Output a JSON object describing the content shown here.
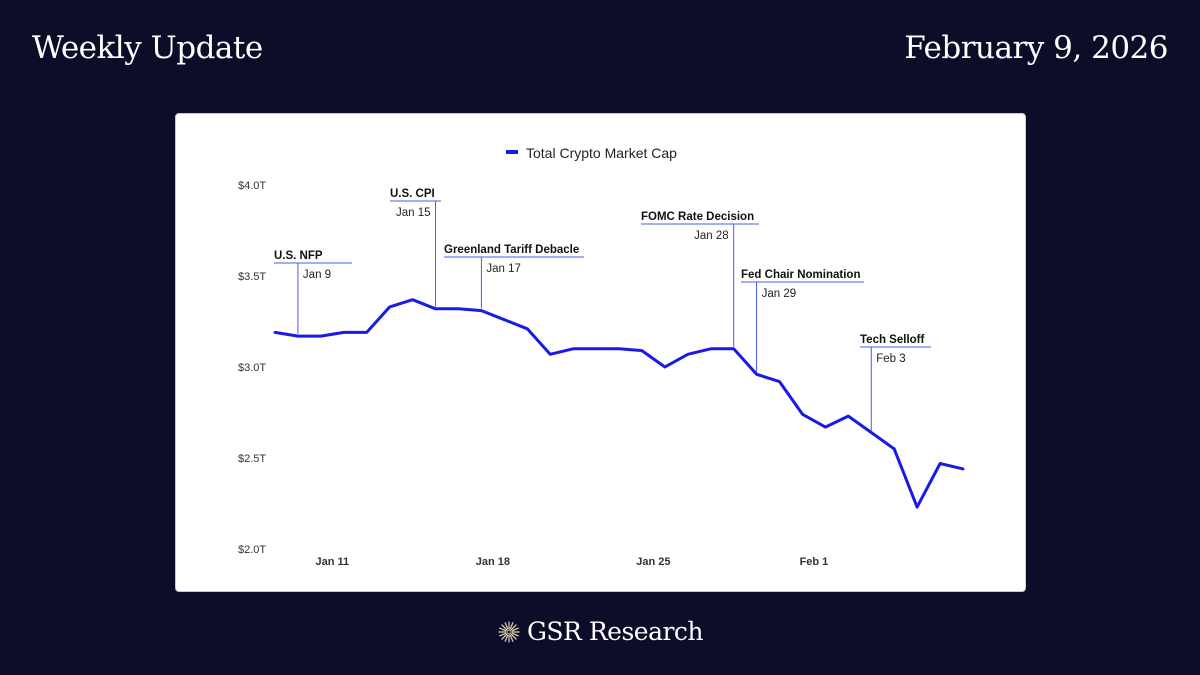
{
  "header": {
    "left_title": "Weekly Update",
    "right_title": "February 9, 2026"
  },
  "footer": {
    "brand": "GSR Research",
    "logo_icon": "starburst-logo-icon"
  },
  "chart_data": {
    "type": "line",
    "legend": "Total Crypto Market Cap",
    "legend_position": "top-center",
    "color": "#1a1ae8",
    "ylim": [
      2.0,
      4.0
    ],
    "y_ticks": [
      {
        "value": 2.0,
        "label": "$2.0T"
      },
      {
        "value": 2.5,
        "label": "$2.5T"
      },
      {
        "value": 3.0,
        "label": "$3.0T"
      },
      {
        "value": 3.5,
        "label": "$3.5T"
      },
      {
        "value": 4.0,
        "label": "$4.0T"
      }
    ],
    "x_ticks": [
      {
        "day": 11,
        "label": "Jan 11"
      },
      {
        "day": 18,
        "label": "Jan 18"
      },
      {
        "day": 25,
        "label": "Jan 25"
      },
      {
        "day": 32,
        "label": "Feb 1"
      }
    ],
    "x_range": [
      8.5,
      38.5
    ],
    "series": [
      {
        "name": "Total Crypto Market Cap",
        "x": [
          8.5,
          9.5,
          10.5,
          11.5,
          12.5,
          13.5,
          14.5,
          15.5,
          16.5,
          17.5,
          18.5,
          19.5,
          20.5,
          21.5,
          22.5,
          23.5,
          24.5,
          25.5,
          26.5,
          27.5,
          28.5,
          29.5,
          30.5,
          31.5,
          32.5,
          33.5,
          34.5,
          35.5,
          36.5,
          37.5,
          38.5
        ],
        "values": [
          3.19,
          3.17,
          3.17,
          3.19,
          3.19,
          3.33,
          3.37,
          3.32,
          3.32,
          3.31,
          3.26,
          3.21,
          3.07,
          3.1,
          3.1,
          3.1,
          3.09,
          3.0,
          3.07,
          3.1,
          3.1,
          2.96,
          2.92,
          2.74,
          2.67,
          2.73,
          2.64,
          2.55,
          2.23,
          2.47,
          2.44
        ]
      }
    ],
    "annotations": [
      {
        "title": "U.S. NFP",
        "date": "Jan 9",
        "x": 9.5,
        "value": 3.17
      },
      {
        "title": "U.S. CPI",
        "date": "Jan 15",
        "x": 15.5,
        "value": 3.32
      },
      {
        "title": "Greenland Tariff Debacle",
        "date": "Jan 17",
        "x": 17.5,
        "value": 3.31
      },
      {
        "title": "FOMC Rate Decision",
        "date": "Jan 28",
        "x": 28.5,
        "value": 3.1
      },
      {
        "title": "Fed Chair Nomination",
        "date": "Jan 29",
        "x": 29.5,
        "value": 2.96
      },
      {
        "title": "Tech Selloff",
        "date": "Feb 3",
        "x": 34.5,
        "value": 2.64
      }
    ]
  }
}
